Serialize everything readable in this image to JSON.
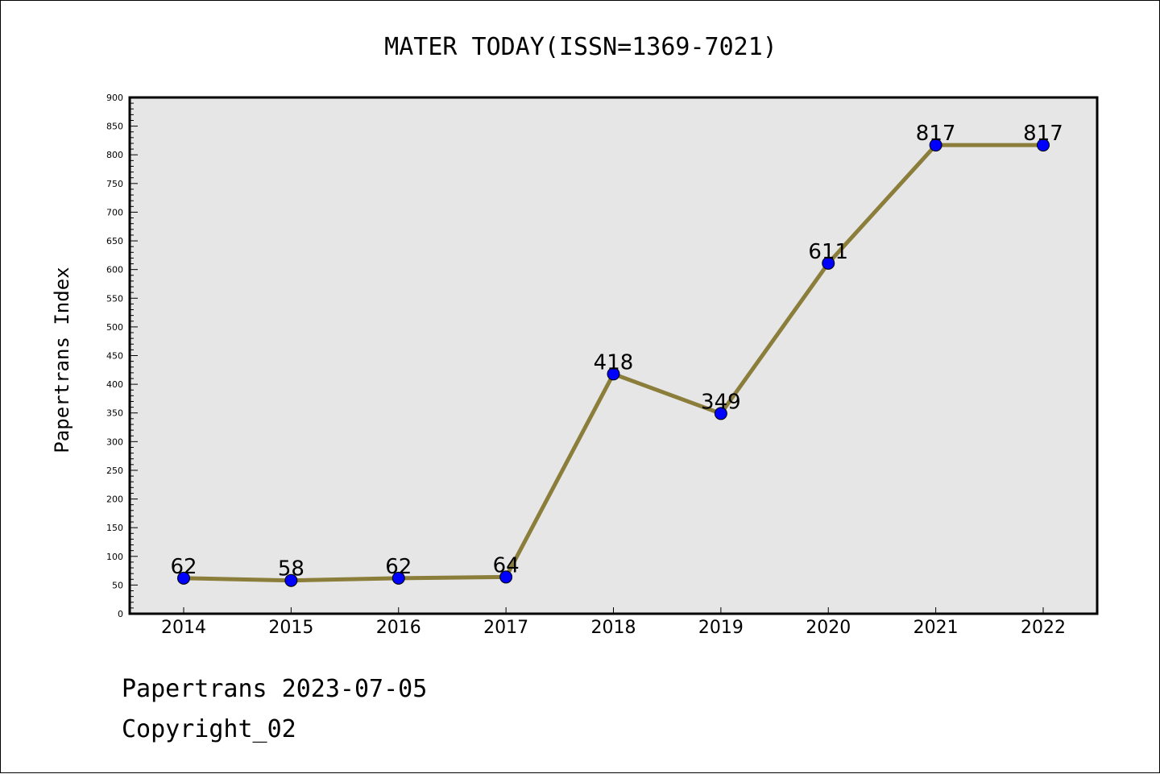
{
  "colors": {
    "background": "#ffffff",
    "plot_area": "#e6e6e6",
    "line": "#8b7d3a",
    "marker_fill": "#0000ff",
    "marker_edge": "#000000"
  },
  "footer": {
    "line1": "Papertrans 2023-07-05",
    "line2": "Copyright_02"
  },
  "chart_data": {
    "type": "line",
    "title": "MATER TODAY(ISSN=1369-7021)",
    "xlabel": "",
    "ylabel": "Papertrans Index",
    "categories": [
      "2014",
      "2015",
      "2016",
      "2017",
      "2018",
      "2019",
      "2020",
      "2021",
      "2022"
    ],
    "series": [
      {
        "values": [
          62,
          58,
          62,
          64,
          418,
          349,
          611,
          817,
          817
        ]
      }
    ],
    "data_labels": [
      "62",
      "58",
      "62",
      "64",
      "418",
      "349",
      "611",
      "817",
      "817"
    ],
    "ylim": [
      0,
      900
    ],
    "yticks": [
      "0",
      "50",
      "100",
      "150",
      "200",
      "250",
      "300",
      "350",
      "400",
      "450",
      "500",
      "550",
      "600",
      "650",
      "700",
      "750",
      "800",
      "850",
      "900"
    ],
    "grid": false,
    "legend": "none"
  }
}
